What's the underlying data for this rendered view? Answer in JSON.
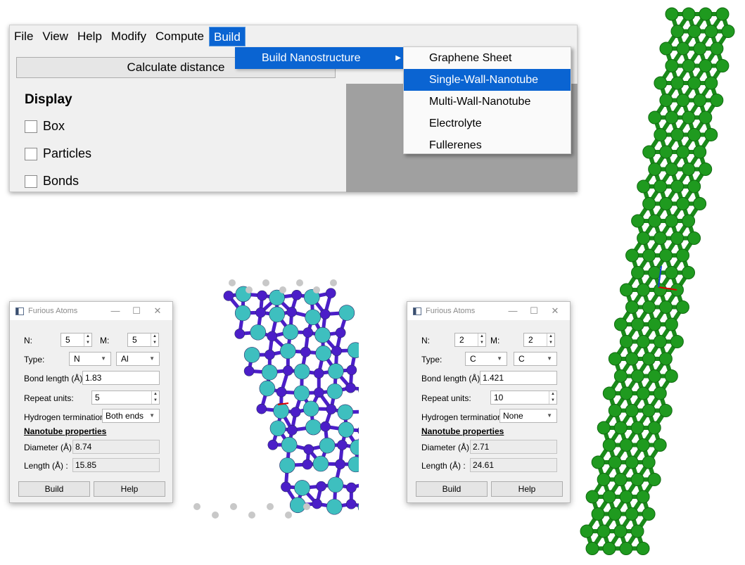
{
  "menubar": {
    "items": [
      "File",
      "View",
      "Help",
      "Modify",
      "Compute",
      "Build"
    ],
    "active": "Build"
  },
  "main": {
    "calc_button": "Calculate distance",
    "display_title": "Display",
    "checkboxes": [
      "Box",
      "Particles",
      "Bonds"
    ]
  },
  "build_menu": {
    "submenu_label": "Build Nanostructure",
    "items": [
      "Graphene Sheet",
      "Single-Wall-Nanotube",
      "Multi-Wall-Nanotube",
      "Electrolyte",
      "Fullerenes"
    ],
    "selected": "Single-Wall-Nanotube"
  },
  "dialog_left": {
    "title": "Furious Atoms",
    "n_label": "N:",
    "n_value": "5",
    "m_label": "M:",
    "m_value": "5",
    "type_label": "Type:",
    "type1": "N",
    "type2": "Al",
    "bond_label": "Bond length (Å):",
    "bond_value": "1.83",
    "repeat_label": "Repeat units:",
    "repeat_value": "5",
    "hterm_label": "Hydrogen termination:",
    "hterm_value": "Both ends",
    "props_title": "Nanotube properties",
    "diam_label": "Diameter (Å):",
    "diam_value": "8.74",
    "len_label": "Length (Å)  :",
    "len_value": "15.85",
    "build_btn": "Build",
    "help_btn": "Help"
  },
  "dialog_right": {
    "title": "Furious Atoms",
    "n_label": "N:",
    "n_value": "2",
    "m_label": "M:",
    "m_value": "2",
    "type_label": "Type:",
    "type1": "C",
    "type2": "C",
    "bond_label": "Bond length (Å):",
    "bond_value": "1.421",
    "repeat_label": "Repeat units:",
    "repeat_value": "10",
    "hterm_label": "Hydrogen termination:",
    "hterm_value": "None",
    "props_title": "Nanotube properties",
    "diam_label": "Diameter (Å):",
    "diam_value": "2.71",
    "len_label": "Length (Å)  :",
    "len_value": "24.61",
    "build_btn": "Build",
    "help_btn": "Help"
  },
  "colors": {
    "menu_highlight": "#0a64d2",
    "bn_atom_cyan": "#3ebfbf",
    "bn_atom_purple": "#4b1ec8",
    "hydrogen": "#c8c8c8",
    "carbon_green": "#1f9a1f"
  }
}
